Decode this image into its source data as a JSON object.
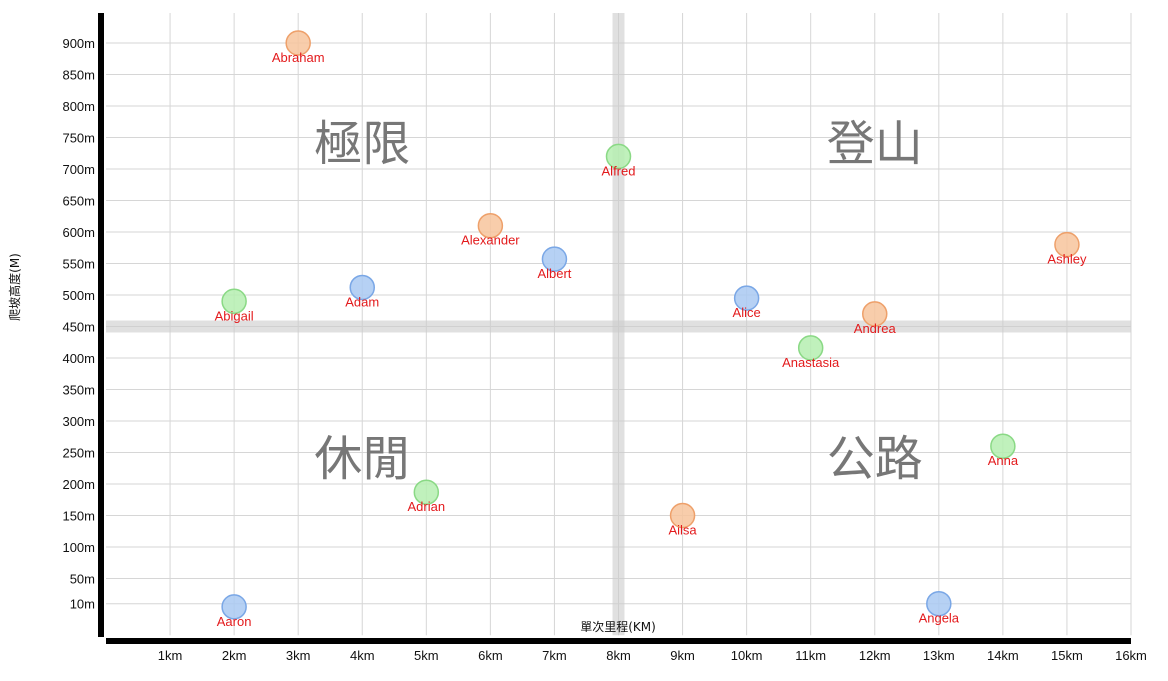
{
  "chart_data": {
    "type": "scatter",
    "xlabel": "單次里程(KM)",
    "ylabel": "爬坡高度(M)",
    "xlim": [
      0,
      16
    ],
    "ylim": [
      -40,
      950
    ],
    "x_tick_values": [
      1,
      2,
      3,
      4,
      5,
      6,
      7,
      8,
      9,
      10,
      11,
      12,
      13,
      14,
      15,
      16
    ],
    "x_tick_labels": [
      "1km",
      "2km",
      "3km",
      "4km",
      "5km",
      "6km",
      "7km",
      "8km",
      "9km",
      "10km",
      "11km",
      "12km",
      "13km",
      "14km",
      "15km",
      "16km"
    ],
    "y_tick_values": [
      10,
      50,
      100,
      150,
      200,
      250,
      300,
      350,
      400,
      450,
      500,
      550,
      600,
      650,
      700,
      750,
      800,
      850,
      900
    ],
    "y_tick_labels": [
      "10m",
      "50m",
      "100m",
      "150m",
      "200m",
      "250m",
      "300m",
      "350m",
      "400m",
      "450m",
      "500m",
      "550m",
      "600m",
      "650m",
      "700m",
      "750m",
      "800m",
      "850m",
      "900m"
    ],
    "grid": true,
    "reference_lines": {
      "x": 8,
      "y": 450
    },
    "quadrant_labels": [
      {
        "text": "極限",
        "x": 4,
        "y": 740
      },
      {
        "text": "登山",
        "x": 12,
        "y": 740
      },
      {
        "text": "休閒",
        "x": 4,
        "y": 240
      },
      {
        "text": "公路",
        "x": 12,
        "y": 240
      }
    ],
    "colors": {
      "blue": "#a9c9f2",
      "green": "#b5eeb0",
      "orange": "#f7c49c",
      "label": "#e31a1c"
    },
    "points": [
      {
        "name": "Abraham",
        "x": 3,
        "y": 900,
        "color": "orange"
      },
      {
        "name": "Alfred",
        "x": 8,
        "y": 720,
        "color": "green"
      },
      {
        "name": "Alexander",
        "x": 6,
        "y": 610,
        "color": "orange"
      },
      {
        "name": "Ashley",
        "x": 15,
        "y": 580,
        "color": "orange"
      },
      {
        "name": "Albert",
        "x": 7,
        "y": 557,
        "color": "blue"
      },
      {
        "name": "Adam",
        "x": 4,
        "y": 512,
        "color": "blue"
      },
      {
        "name": "Alice",
        "x": 10,
        "y": 495,
        "color": "blue"
      },
      {
        "name": "Abigail",
        "x": 2,
        "y": 490,
        "color": "green"
      },
      {
        "name": "Andrea",
        "x": 12,
        "y": 470,
        "color": "orange"
      },
      {
        "name": "Anastasia",
        "x": 11,
        "y": 416,
        "color": "green"
      },
      {
        "name": "Anna",
        "x": 14,
        "y": 260,
        "color": "green"
      },
      {
        "name": "Adrian",
        "x": 5,
        "y": 187,
        "color": "green"
      },
      {
        "name": "Ailsa",
        "x": 9,
        "y": 150,
        "color": "orange"
      },
      {
        "name": "Angela",
        "x": 13,
        "y": 10,
        "color": "blue"
      },
      {
        "name": "Aaron",
        "x": 2,
        "y": 5,
        "color": "blue"
      }
    ]
  }
}
